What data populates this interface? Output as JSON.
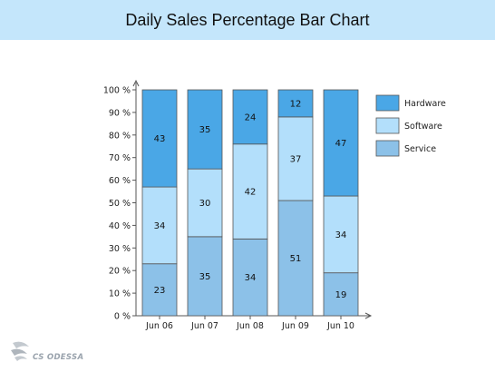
{
  "page": {
    "title": "Daily Sales Percentage Bar Chart",
    "logo_text": "CS ODESSA"
  },
  "chart_data": {
    "type": "bar",
    "stacked": true,
    "normalized_percent": true,
    "title": "Daily Sales Percentage Bar Chart",
    "xlabel": "",
    "ylabel": "",
    "ylim": [
      0,
      100
    ],
    "y_ticks": [
      "0 %",
      "10 %",
      "20 %",
      "30 %",
      "40 %",
      "50 %",
      "60 %",
      "70 %",
      "80 %",
      "90 %",
      "100 %"
    ],
    "categories": [
      "Jun 06",
      "Jun 07",
      "Jun 08",
      "Jun 09",
      "Jun 10"
    ],
    "series": [
      {
        "name": "Service",
        "values": [
          23,
          35,
          34,
          51,
          19
        ],
        "color": "#8cc1e8"
      },
      {
        "name": "Software",
        "values": [
          34,
          30,
          42,
          37,
          34
        ],
        "color": "#b3dffb"
      },
      {
        "name": "Hardware",
        "values": [
          43,
          35,
          24,
          12,
          47
        ],
        "color": "#4aa7e6"
      }
    ],
    "legend": [
      "Hardware",
      "Software",
      "Service"
    ],
    "legend_position": "right",
    "grid": false
  }
}
